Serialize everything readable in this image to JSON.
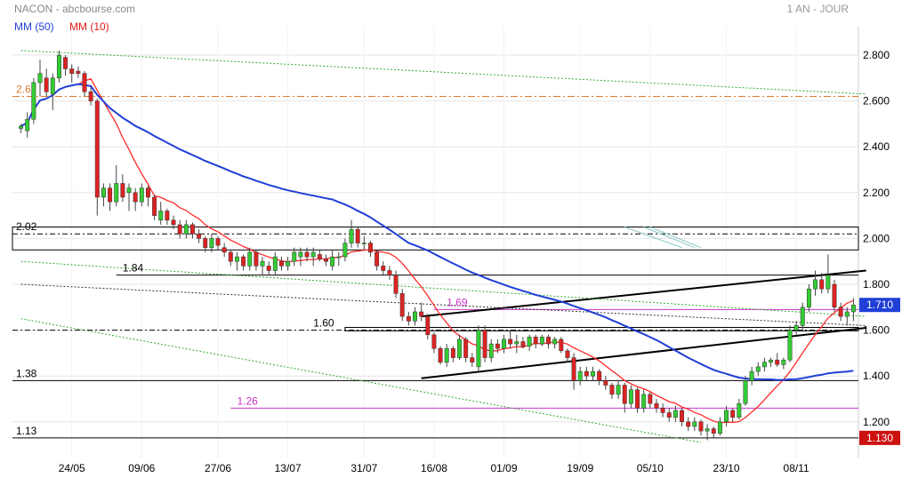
{
  "header": {
    "title": "NACON - abcbourse.com",
    "period": "1 AN - JOUR",
    "ma50_label": "MM (50)",
    "ma10_label": "MM (10)"
  },
  "colors": {
    "background": "#ffffff",
    "candle_up": "#33cc33",
    "candle_down": "#dd2222",
    "ma50": "#1f3fd6",
    "ma10": "#ff2a2a",
    "grid": "#e6e6e6",
    "last_price_bg": "#1f3fd6",
    "support_tag_bg": "#cc1111"
  },
  "chart_data": {
    "type": "candlestick",
    "title": "NACON - abcbourse.com",
    "period": "1 AN - JOUR",
    "y_range": [
      1.1,
      2.92
    ],
    "y_ticks": [
      "2.800",
      "2.600",
      "2.400",
      "2.200",
      "2.000",
      "1.800",
      "1.600",
      "1.400",
      "1.200"
    ],
    "y_tick_values": [
      2.8,
      2.6,
      2.4,
      2.2,
      2.0,
      1.8,
      1.6,
      1.4,
      1.2
    ],
    "x_labels": [
      "24/05",
      "09/06",
      "27/06",
      "13/07",
      "31/07",
      "16/08",
      "01/09",
      "19/09",
      "05/10",
      "23/10",
      "08/11"
    ],
    "x_label_index": [
      8,
      19,
      31,
      42,
      54,
      65,
      76,
      88,
      99,
      111,
      122
    ],
    "candles_ohlc": [
      [
        2.48,
        2.5,
        2.46,
        2.49
      ],
      [
        2.47,
        2.55,
        2.44,
        2.52
      ],
      [
        2.52,
        2.7,
        2.5,
        2.68
      ],
      [
        2.68,
        2.78,
        2.62,
        2.72
      ],
      [
        2.7,
        2.74,
        2.62,
        2.64
      ],
      [
        2.63,
        2.72,
        2.56,
        2.7
      ],
      [
        2.7,
        2.82,
        2.68,
        2.8
      ],
      [
        2.79,
        2.8,
        2.71,
        2.74
      ],
      [
        2.74,
        2.76,
        2.68,
        2.72
      ],
      [
        2.73,
        2.75,
        2.7,
        2.72
      ],
      [
        2.72,
        2.73,
        2.62,
        2.64
      ],
      [
        2.64,
        2.66,
        2.58,
        2.6
      ],
      [
        2.6,
        2.61,
        2.1,
        2.18
      ],
      [
        2.18,
        2.24,
        2.14,
        2.22
      ],
      [
        2.22,
        2.24,
        2.12,
        2.16
      ],
      [
        2.16,
        2.32,
        2.14,
        2.24
      ],
      [
        2.24,
        2.28,
        2.16,
        2.18
      ],
      [
        2.2,
        2.24,
        2.12,
        2.22
      ],
      [
        2.2,
        2.22,
        2.12,
        2.16
      ],
      [
        2.16,
        2.24,
        2.14,
        2.22
      ],
      [
        2.22,
        2.23,
        2.14,
        2.18
      ],
      [
        2.18,
        2.19,
        2.08,
        2.1
      ],
      [
        2.08,
        2.16,
        2.06,
        2.12
      ],
      [
        2.12,
        2.13,
        2.06,
        2.08
      ],
      [
        2.08,
        2.1,
        2.04,
        2.06
      ],
      [
        2.06,
        2.08,
        2.0,
        2.02
      ],
      [
        2.02,
        2.08,
        2.0,
        2.06
      ],
      [
        2.06,
        2.07,
        2.0,
        2.02
      ],
      [
        2.02,
        2.04,
        1.98,
        2.0
      ],
      [
        2.0,
        2.01,
        1.94,
        1.96
      ],
      [
        1.96,
        2.02,
        1.94,
        2.0
      ],
      [
        2.0,
        2.01,
        1.95,
        1.97
      ],
      [
        1.96,
        1.98,
        1.92,
        1.94
      ],
      [
        1.94,
        1.95,
        1.88,
        1.9
      ],
      [
        1.9,
        1.94,
        1.86,
        1.92
      ],
      [
        1.92,
        1.93,
        1.86,
        1.88
      ],
      [
        1.88,
        1.96,
        1.86,
        1.94
      ],
      [
        1.94,
        1.95,
        1.86,
        1.88
      ],
      [
        1.88,
        1.92,
        1.84,
        1.9
      ],
      [
        1.88,
        1.9,
        1.84,
        1.86
      ],
      [
        1.86,
        1.94,
        1.84,
        1.92
      ],
      [
        1.9,
        1.92,
        1.86,
        1.88
      ],
      [
        1.88,
        1.92,
        1.86,
        1.9
      ],
      [
        1.9,
        1.96,
        1.88,
        1.94
      ],
      [
        1.92,
        1.96,
        1.88,
        1.94
      ],
      [
        1.94,
        1.96,
        1.9,
        1.92
      ],
      [
        1.92,
        1.96,
        1.88,
        1.94
      ],
      [
        1.93,
        1.95,
        1.9,
        1.91
      ],
      [
        1.91,
        1.93,
        1.88,
        1.9
      ],
      [
        1.88,
        1.95,
        1.86,
        1.92
      ],
      [
        1.92,
        1.94,
        1.88,
        1.92
      ],
      [
        1.92,
        2.0,
        1.9,
        1.98
      ],
      [
        1.98,
        2.08,
        1.96,
        2.04
      ],
      [
        2.04,
        2.05,
        1.96,
        1.98
      ],
      [
        1.98,
        2.01,
        1.95,
        1.98
      ],
      [
        1.98,
        1.99,
        1.92,
        1.94
      ],
      [
        1.94,
        1.95,
        1.86,
        1.88
      ],
      [
        1.88,
        1.9,
        1.84,
        1.86
      ],
      [
        1.86,
        1.88,
        1.82,
        1.84
      ],
      [
        1.84,
        1.86,
        1.74,
        1.76
      ],
      [
        1.76,
        1.78,
        1.64,
        1.66
      ],
      [
        1.66,
        1.68,
        1.62,
        1.64
      ],
      [
        1.64,
        1.7,
        1.62,
        1.68
      ],
      [
        1.68,
        1.72,
        1.64,
        1.66
      ],
      [
        1.66,
        1.67,
        1.56,
        1.58
      ],
      [
        1.58,
        1.59,
        1.5,
        1.52
      ],
      [
        1.52,
        1.53,
        1.45,
        1.46
      ],
      [
        1.46,
        1.54,
        1.44,
        1.52
      ],
      [
        1.52,
        1.53,
        1.46,
        1.48
      ],
      [
        1.48,
        1.58,
        1.47,
        1.56
      ],
      [
        1.56,
        1.57,
        1.46,
        1.48
      ],
      [
        1.48,
        1.5,
        1.44,
        1.46
      ],
      [
        1.44,
        1.62,
        1.42,
        1.6
      ],
      [
        1.6,
        1.62,
        1.46,
        1.48
      ],
      [
        1.48,
        1.56,
        1.46,
        1.54
      ],
      [
        1.54,
        1.56,
        1.5,
        1.52
      ],
      [
        1.52,
        1.58,
        1.5,
        1.56
      ],
      [
        1.56,
        1.6,
        1.52,
        1.54
      ],
      [
        1.54,
        1.58,
        1.5,
        1.55
      ],
      [
        1.55,
        1.57,
        1.52,
        1.53
      ],
      [
        1.53,
        1.58,
        1.51,
        1.57
      ],
      [
        1.57,
        1.58,
        1.52,
        1.54
      ],
      [
        1.54,
        1.58,
        1.53,
        1.57
      ],
      [
        1.57,
        1.58,
        1.52,
        1.54
      ],
      [
        1.54,
        1.57,
        1.52,
        1.56
      ],
      [
        1.56,
        1.57,
        1.5,
        1.51
      ],
      [
        1.51,
        1.52,
        1.46,
        1.48
      ],
      [
        1.48,
        1.5,
        1.34,
        1.38
      ],
      [
        1.38,
        1.44,
        1.36,
        1.42
      ],
      [
        1.42,
        1.44,
        1.38,
        1.4
      ],
      [
        1.4,
        1.44,
        1.38,
        1.42
      ],
      [
        1.42,
        1.43,
        1.36,
        1.38
      ],
      [
        1.38,
        1.4,
        1.34,
        1.36
      ],
      [
        1.36,
        1.37,
        1.3,
        1.32
      ],
      [
        1.32,
        1.38,
        1.3,
        1.36
      ],
      [
        1.36,
        1.37,
        1.24,
        1.28
      ],
      [
        1.28,
        1.36,
        1.26,
        1.34
      ],
      [
        1.34,
        1.35,
        1.24,
        1.26
      ],
      [
        1.26,
        1.34,
        1.24,
        1.32
      ],
      [
        1.32,
        1.33,
        1.26,
        1.28
      ],
      [
        1.28,
        1.3,
        1.24,
        1.26
      ],
      [
        1.26,
        1.28,
        1.22,
        1.24
      ],
      [
        1.24,
        1.26,
        1.2,
        1.22
      ],
      [
        1.22,
        1.27,
        1.2,
        1.25
      ],
      [
        1.25,
        1.26,
        1.18,
        1.2
      ],
      [
        1.2,
        1.22,
        1.16,
        1.18
      ],
      [
        1.18,
        1.22,
        1.16,
        1.2
      ],
      [
        1.2,
        1.21,
        1.14,
        1.16
      ],
      [
        1.16,
        1.19,
        1.12,
        1.17
      ],
      [
        1.17,
        1.18,
        1.13,
        1.15
      ],
      [
        1.15,
        1.22,
        1.14,
        1.2
      ],
      [
        1.2,
        1.27,
        1.18,
        1.25
      ],
      [
        1.25,
        1.26,
        1.2,
        1.22
      ],
      [
        1.22,
        1.3,
        1.21,
        1.28
      ],
      [
        1.28,
        1.4,
        1.27,
        1.38
      ],
      [
        1.38,
        1.44,
        1.36,
        1.42
      ],
      [
        1.42,
        1.46,
        1.4,
        1.44
      ],
      [
        1.44,
        1.48,
        1.42,
        1.46
      ],
      [
        1.46,
        1.48,
        1.44,
        1.47
      ],
      [
        1.47,
        1.5,
        1.44,
        1.45
      ],
      [
        1.45,
        1.48,
        1.43,
        1.47
      ],
      [
        1.47,
        1.62,
        1.46,
        1.6
      ],
      [
        1.6,
        1.64,
        1.58,
        1.62
      ],
      [
        1.62,
        1.72,
        1.6,
        1.7
      ],
      [
        1.7,
        1.8,
        1.68,
        1.78
      ],
      [
        1.78,
        1.86,
        1.75,
        1.82
      ],
      [
        1.82,
        1.85,
        1.76,
        1.78
      ],
      [
        1.78,
        1.93,
        1.76,
        1.84
      ],
      [
        1.8,
        1.82,
        1.68,
        1.7
      ],
      [
        1.7,
        1.72,
        1.64,
        1.66
      ],
      [
        1.66,
        1.7,
        1.62,
        1.68
      ],
      [
        1.68,
        1.74,
        1.64,
        1.71
      ]
    ],
    "moving_averages": [
      {
        "name": "MM (50)",
        "period": 50,
        "color": "#1f3fd6"
      },
      {
        "name": "MM (10)",
        "period": 10,
        "color": "#ff2a2a"
      }
    ],
    "horizontal_levels": [
      {
        "label": "2.62",
        "value": 2.62,
        "style": "dashdot",
        "color": "#e07a30"
      },
      {
        "label": "2.02",
        "value": 2.02,
        "style": "box",
        "color": "#000000"
      },
      {
        "label": "1.84",
        "value": 1.84,
        "style": "solid",
        "color": "#000000"
      },
      {
        "label": "1.69",
        "value": 1.69,
        "style": "solid",
        "color": "#cc33cc"
      },
      {
        "label": "1.60",
        "value": 1.6,
        "style": "box",
        "color": "#000000"
      },
      {
        "label": "1.38",
        "value": 1.38,
        "style": "solid",
        "color": "#000000"
      },
      {
        "label": "1.26",
        "value": 1.26,
        "style": "solid",
        "color": "#cc33cc"
      },
      {
        "label": "1.13",
        "value": 1.13,
        "style": "solid",
        "color": "#000000"
      }
    ],
    "trend_lines": [
      {
        "from": [
          63,
          1.66
        ],
        "to": [
          133,
          1.86
        ],
        "color": "#000000",
        "style": "solid"
      },
      {
        "from": [
          63,
          1.39
        ],
        "to": [
          133,
          1.61
        ],
        "color": "#000000",
        "style": "solid"
      },
      {
        "from": [
          0,
          2.82
        ],
        "to": [
          133,
          2.63
        ],
        "color": "#33aa33",
        "style": "dotted"
      },
      {
        "from": [
          0,
          1.9
        ],
        "to": [
          133,
          1.66
        ],
        "color": "#33aa33",
        "style": "dotted"
      },
      {
        "from": [
          0,
          1.8
        ],
        "to": [
          133,
          1.62
        ],
        "color": "#333333",
        "style": "dotted"
      },
      {
        "from": [
          0,
          1.65
        ],
        "to": [
          107,
          1.11
        ],
        "color": "#33aa33",
        "style": "dotted"
      }
    ],
    "last_price": "1.710",
    "last_price_value": 1.71,
    "support_tag": "1.130",
    "support_tag_value": 1.13
  }
}
